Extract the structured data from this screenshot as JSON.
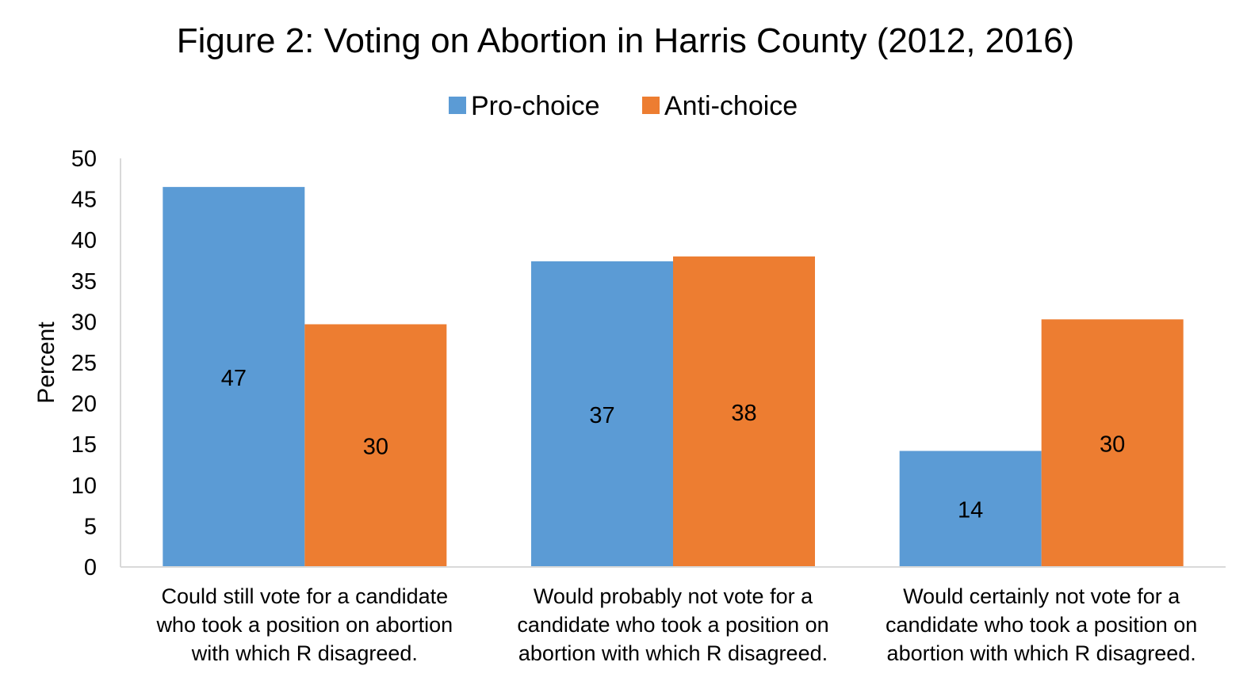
{
  "chart_data": {
    "type": "bar",
    "title": "Figure 2: Voting on Abortion in Harris County (2012, 2016)",
    "ylabel": "Percent",
    "xlabel": "",
    "ylim": [
      0,
      50
    ],
    "yticks": [
      "0",
      "5",
      "10",
      "15",
      "20",
      "25",
      "30",
      "35",
      "40",
      "45",
      "50"
    ],
    "grid": false,
    "legend_position": "top",
    "categories": [
      [
        "Could still vote for a candidate",
        "who took a position on abortion",
        "with which R disagreed."
      ],
      [
        "Would probably not vote for a",
        "candidate who took a position on",
        "abortion with which R disagreed."
      ],
      [
        "Would certainly not vote for a",
        "candidate who took a position on",
        "abortion with which R disagreed."
      ]
    ],
    "series": [
      {
        "name": "Pro-choice",
        "color": "#5B9BD5",
        "values": [
          46.5,
          37.4,
          14.2
        ],
        "labels": [
          "47",
          "37",
          "14"
        ]
      },
      {
        "name": "Anti-choice",
        "color": "#ED7D31",
        "values": [
          29.7,
          38.0,
          30.3
        ],
        "labels": [
          "30",
          "38",
          "30"
        ]
      }
    ]
  }
}
